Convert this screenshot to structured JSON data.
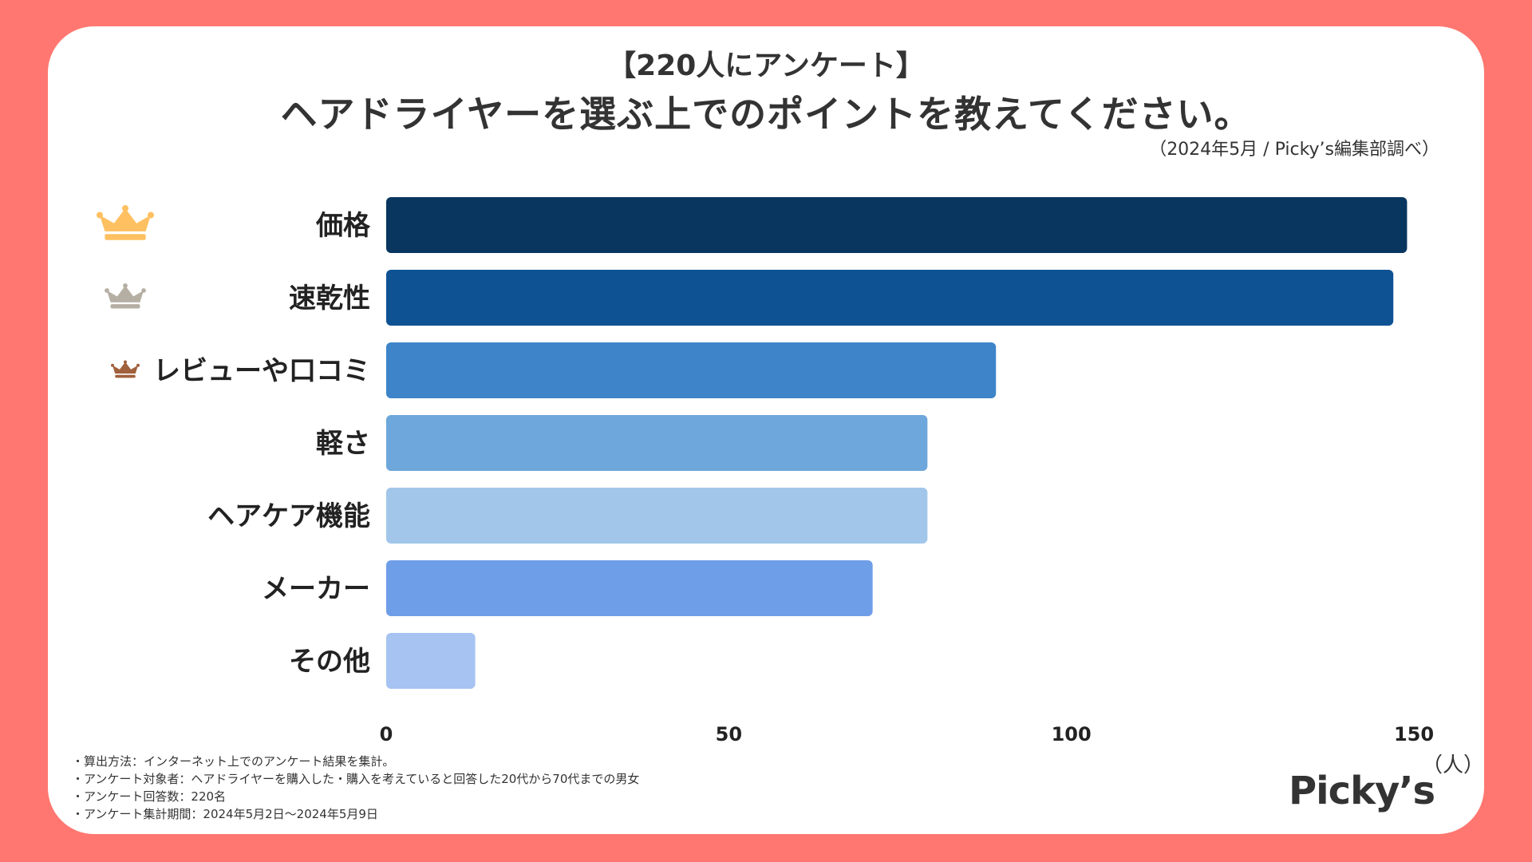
{
  "title_sub": "【220人にアンケート】",
  "title_main": "ヘアドライヤーを選ぶ上でのポイントを教えてください。",
  "source": "（2024年5月 / Picky’s編集部調べ）",
  "unit_label": "（人）",
  "logo": "Picky’s",
  "notes": [
    "・算出方法：インターネット上でのアンケート結果を集計。",
    "・アンケート対象者：ヘアドライヤーを購入した・購入を考えていると回答した20代から70代までの男女",
    "・アンケート回答数：220名",
    "・アンケート集計期間：2024年5月2日〜2024年5月9日"
  ],
  "rank_icons": [
    "crown-gold-icon",
    "crown-silver-icon",
    "crown-bronze-icon"
  ],
  "colors": {
    "background": "#ff7770",
    "crowns": [
      "#ffc061",
      "#b5aea3",
      "#a0603c"
    ],
    "bars": [
      "#08365f",
      "#0f5294",
      "#3d84c8",
      "#6ea7db",
      "#a1c6e9",
      "#6f9ee8",
      "#a6c3f2"
    ]
  },
  "chart_data": {
    "type": "bar",
    "orientation": "horizontal",
    "title": "ヘアドライヤーを選ぶ上でのポイントを教えてください。",
    "categories": [
      "価格",
      "速乾性",
      "レビューや口コミ",
      "軽さ",
      "ヘアケア機能",
      "メーカー",
      "その他"
    ],
    "values": [
      149,
      147,
      89,
      79,
      79,
      71,
      13
    ],
    "xlim": [
      0,
      150
    ],
    "xticks": [
      0,
      50,
      100,
      150
    ],
    "xlabel": "（人）",
    "grid": false
  }
}
